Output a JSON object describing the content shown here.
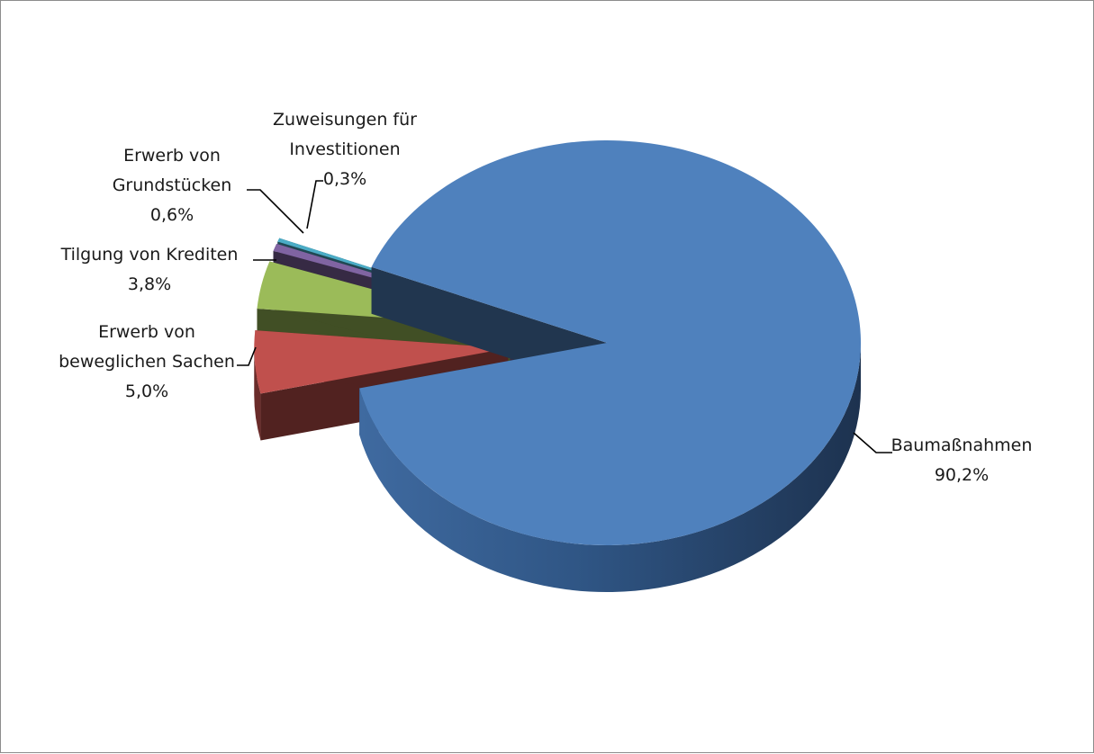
{
  "chart_data": {
    "type": "pie",
    "title": "",
    "slices": [
      {
        "name": "Baumaßnahmen",
        "value": 90.2,
        "value_label": "90,2%",
        "color": "#4F81BD"
      },
      {
        "name": "Erwerb von beweglichen Sachen",
        "label_lines": [
          "Erwerb von",
          "beweglichen Sachen"
        ],
        "value": 5.0,
        "value_label": "5,0%",
        "color": "#C0504D"
      },
      {
        "name": "Tilgung von Krediten",
        "label_lines": [
          "Tilgung von Krediten"
        ],
        "value": 3.8,
        "value_label": "3,8%",
        "color": "#9BBB59"
      },
      {
        "name": "Erwerb von Grundstücken",
        "label_lines": [
          "Erwerb von",
          "Grundstücken"
        ],
        "value": 0.6,
        "value_label": "0,6%",
        "color": "#8064A2"
      },
      {
        "name": "Zuweisungen für Investitionen",
        "label_lines": [
          "Zuweisungen für",
          "Investitionen"
        ],
        "value": 0.3,
        "value_label": "0,3%",
        "color": "#4BACC6"
      }
    ],
    "style": "3d-exploded",
    "legend": "none"
  }
}
